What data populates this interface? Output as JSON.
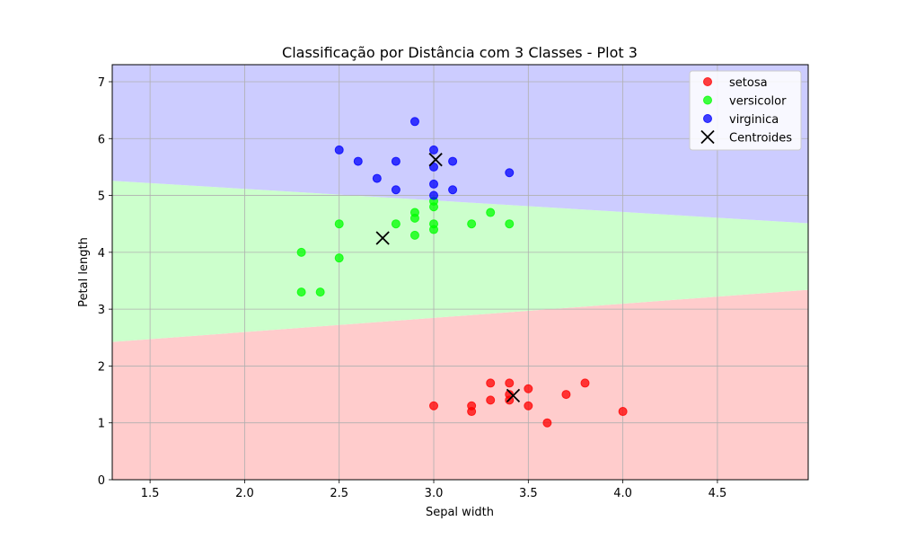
{
  "chart_data": {
    "type": "scatter",
    "title": "Classificação por Distância com 3 Classes - Plot 3",
    "xlabel": "Sepal width",
    "ylabel": "Petal length",
    "xlim": [
      1.3,
      4.98
    ],
    "ylim": [
      0,
      7.3
    ],
    "xticks": [
      1.5,
      2.0,
      2.5,
      3.0,
      3.5,
      4.0,
      4.5
    ],
    "yticks": [
      0,
      1,
      2,
      3,
      4,
      5,
      6,
      7
    ],
    "grid": true,
    "legend_position": "upper right",
    "series": [
      {
        "name": "setosa",
        "color": "#ff0000",
        "points": [
          [
            3.0,
            1.3
          ],
          [
            3.2,
            1.3
          ],
          [
            3.2,
            1.2
          ],
          [
            3.3,
            1.4
          ],
          [
            3.3,
            1.7
          ],
          [
            3.4,
            1.7
          ],
          [
            3.4,
            1.5
          ],
          [
            3.4,
            1.4
          ],
          [
            3.5,
            1.6
          ],
          [
            3.5,
            1.3
          ],
          [
            3.6,
            1.0
          ],
          [
            3.7,
            1.5
          ],
          [
            3.8,
            1.7
          ],
          [
            4.0,
            1.2
          ]
        ]
      },
      {
        "name": "versicolor",
        "color": "#00ff00",
        "points": [
          [
            2.3,
            4.0
          ],
          [
            2.3,
            3.3
          ],
          [
            2.4,
            3.3
          ],
          [
            2.5,
            4.5
          ],
          [
            2.5,
            3.9
          ],
          [
            2.8,
            4.5
          ],
          [
            2.9,
            4.7
          ],
          [
            2.9,
            4.6
          ],
          [
            2.9,
            4.3
          ],
          [
            3.0,
            4.9
          ],
          [
            3.0,
            4.8
          ],
          [
            3.0,
            4.5
          ],
          [
            3.0,
            4.4
          ],
          [
            3.2,
            4.5
          ],
          [
            3.3,
            4.7
          ],
          [
            3.4,
            4.5
          ]
        ]
      },
      {
        "name": "virginica",
        "color": "#0000ff",
        "points": [
          [
            2.5,
            5.8
          ],
          [
            2.6,
            5.6
          ],
          [
            2.7,
            5.3
          ],
          [
            2.8,
            5.6
          ],
          [
            2.8,
            5.1
          ],
          [
            2.9,
            6.3
          ],
          [
            3.0,
            5.8
          ],
          [
            3.0,
            5.5
          ],
          [
            3.0,
            5.2
          ],
          [
            3.0,
            5.0
          ],
          [
            3.1,
            5.6
          ],
          [
            3.1,
            5.1
          ],
          [
            3.4,
            5.4
          ]
        ]
      }
    ],
    "centroids": {
      "name": "Centroides",
      "color": "#000000",
      "points": [
        [
          3.42,
          1.48
        ],
        [
          2.73,
          4.25
        ],
        [
          3.01,
          5.63
        ]
      ]
    },
    "regions": [
      {
        "class": "setosa",
        "color": "#ffcccc"
      },
      {
        "class": "versicolor",
        "color": "#ccffcc"
      },
      {
        "class": "virginica",
        "color": "#ccccff"
      }
    ]
  }
}
